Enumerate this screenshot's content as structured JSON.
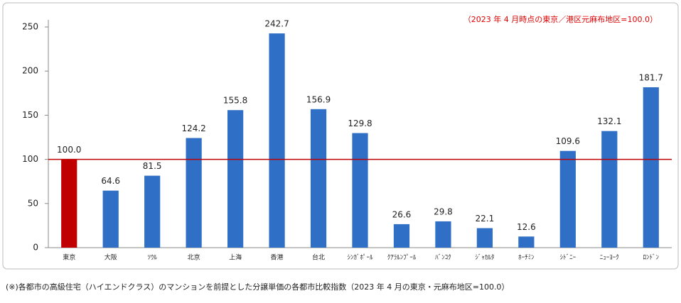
{
  "chart_data": {
    "type": "bar",
    "annotation": "（2023 年 4 月時点の東京／港区元麻布地区=100.0）",
    "footnote": "(※)各都市の高級住宅（ハイエンドクラス）のマンションを前提とした分譲単価の各都市比較指数（2023 年 4 月の東京・元麻布地区=100.0）",
    "categories": [
      "東京",
      "大阪",
      "ｿｳﾙ",
      "北京",
      "上海",
      "香港",
      "台北",
      "ｼﾝｶﾞﾎﾟｰﾙ",
      "ｸｱﾗﾙﾝﾌﾟｰﾙ",
      "ﾊﾞﾝｺｸ",
      "ｼﾞｬｶﾙﾀ",
      "ﾎｰﾁﾐﾝ",
      "ｼﾄﾞﾆｰ",
      "ﾆｭｰﾖｰｸ",
      "ﾛﾝﾄﾞﾝ"
    ],
    "values": [
      100.0,
      64.6,
      81.5,
      124.2,
      155.8,
      242.7,
      156.9,
      129.8,
      26.6,
      29.8,
      22.1,
      12.6,
      109.6,
      132.1,
      181.7
    ],
    "value_labels": [
      "100.0",
      "64.6",
      "81.5",
      "124.2",
      "155.8",
      "242.7",
      "156.9",
      "129.8",
      "26.6",
      "29.8",
      "22.1",
      "12.6",
      "109.6",
      "132.1",
      "181.7"
    ],
    "colors": [
      "#c00000",
      "#2f6fc6",
      "#2f6fc6",
      "#2f6fc6",
      "#2f6fc6",
      "#2f6fc6",
      "#2f6fc6",
      "#2f6fc6",
      "#2f6fc6",
      "#2f6fc6",
      "#2f6fc6",
      "#2f6fc6",
      "#2f6fc6",
      "#2f6fc6",
      "#2f6fc6"
    ],
    "reference_line": {
      "value": 100,
      "color": "#c00000"
    },
    "annotation_color": "#e00000",
    "ylim": [
      0,
      250
    ],
    "yticks": [
      0,
      50,
      100,
      150,
      200,
      250
    ],
    "grid": false
  }
}
